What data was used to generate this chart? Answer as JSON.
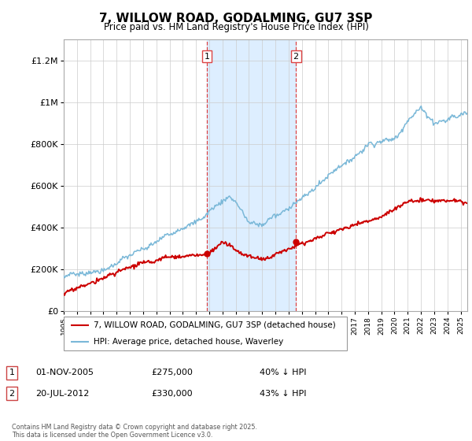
{
  "title": "7, WILLOW ROAD, GODALMING, GU7 3SP",
  "subtitle": "Price paid vs. HM Land Registry's House Price Index (HPI)",
  "ylim": [
    0,
    1300000
  ],
  "yticks": [
    0,
    200000,
    400000,
    600000,
    800000,
    1000000,
    1200000
  ],
  "ytick_labels": [
    "£0",
    "£200K",
    "£400K",
    "£600K",
    "£800K",
    "£1M",
    "£1.2M"
  ],
  "red_line_label": "7, WILLOW ROAD, GODALMING, GU7 3SP (detached house)",
  "blue_line_label": "HPI: Average price, detached house, Waverley",
  "sale1_date": "01-NOV-2005",
  "sale1_price": "£275,000",
  "sale1_pct": "40% ↓ HPI",
  "sale1_year": 2005.83,
  "sale1_price_val": 275000,
  "sale2_date": "20-JUL-2012",
  "sale2_price": "£330,000",
  "sale2_pct": "43% ↓ HPI",
  "sale2_year": 2012.55,
  "sale2_price_val": 330000,
  "shaded_region_color": "#ddeeff",
  "red_color": "#cc0000",
  "blue_color": "#7ab8d8",
  "footer": "Contains HM Land Registry data © Crown copyright and database right 2025.\nThis data is licensed under the Open Government Licence v3.0.",
  "xmin": 1995,
  "xmax": 2025.5
}
